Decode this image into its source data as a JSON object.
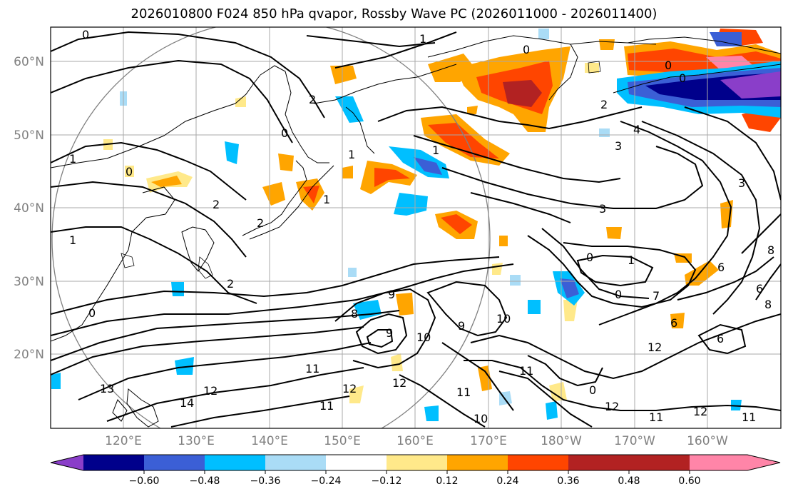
{
  "title": "2026010800 F024 850 hPa qvapor, Rossby Wave PC (2026011000 - 2026011400)",
  "map": {
    "lat_labels": [
      "60°N",
      "50°N",
      "40°N",
      "30°N",
      "20°N"
    ],
    "lon_labels": [
      "120°E",
      "130°E",
      "140°E",
      "150°E",
      "160°E",
      "170°E",
      "180°W",
      "170°W",
      "160°W"
    ],
    "gridlines": true,
    "contour_labels": [
      "0",
      "1",
      "2",
      "3",
      "4",
      "6",
      "7",
      "8",
      "9",
      "10",
      "11",
      "12",
      "13",
      "14"
    ]
  },
  "colorbar": {
    "colors": [
      "#8a3ec9",
      "#00008b",
      "#3b5fd6",
      "#00bfff",
      "#aadcf6",
      "#ffffff",
      "#ffe98a",
      "#ffa500",
      "#ff4500",
      "#b22222",
      "#ff85a8"
    ],
    "tick_labels": [
      "−0.60",
      "−0.48",
      "−0.36",
      "−0.24",
      "−0.12",
      "0.12",
      "0.24",
      "0.36",
      "0.48",
      "0.60"
    ]
  }
}
